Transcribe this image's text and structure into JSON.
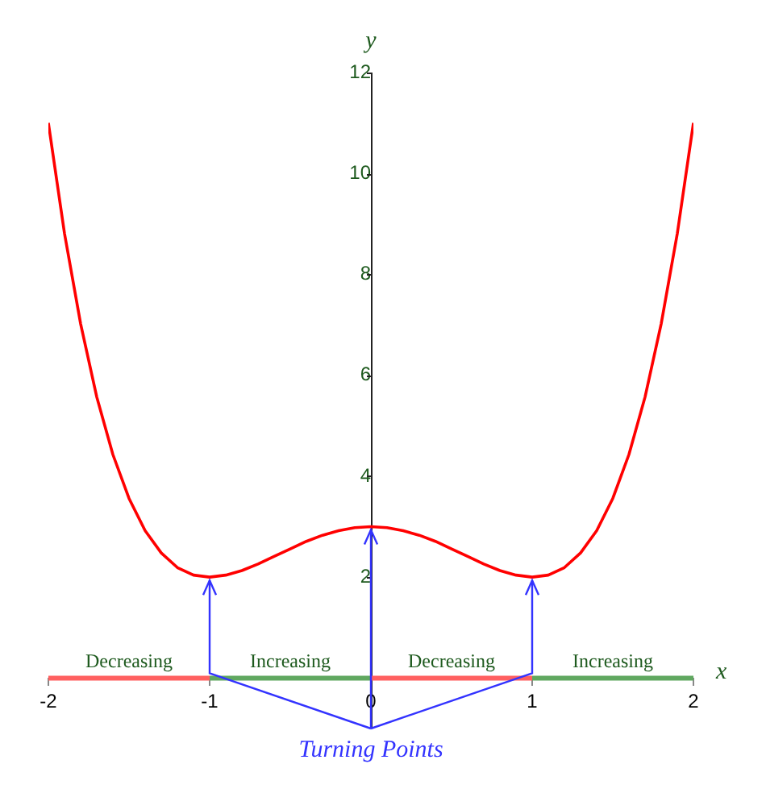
{
  "chart_data": {
    "type": "line",
    "xlabel": "x",
    "ylabel": "y",
    "x": [
      -2,
      -1.9,
      -1.8,
      -1.7,
      -1.6,
      -1.5,
      -1.4,
      -1.3,
      -1.2,
      -1.1,
      -1,
      -0.9,
      -0.8,
      -0.7,
      -0.6,
      -0.5,
      -0.4,
      -0.3,
      -0.2,
      -0.1,
      0,
      0.1,
      0.2,
      0.3,
      0.4,
      0.5,
      0.6,
      0.7,
      0.8,
      0.9,
      1,
      1.1,
      1.2,
      1.3,
      1.4,
      1.5,
      1.6,
      1.7,
      1.8,
      1.9,
      2
    ],
    "series": [
      {
        "color": "#ff0000",
        "values": [
          11,
          8.81,
          7.02,
          5.57,
          4.43,
          3.56,
          2.92,
          2.48,
          2.19,
          2.04,
          2,
          2.04,
          2.13,
          2.26,
          2.41,
          2.56,
          2.71,
          2.83,
          2.92,
          2.98,
          3,
          2.98,
          2.92,
          2.83,
          2.71,
          2.56,
          2.41,
          2.26,
          2.13,
          2.04,
          2,
          2.04,
          2.19,
          2.48,
          2.92,
          3.56,
          4.43,
          5.57,
          7.02,
          8.81,
          11
        ]
      },
      {
        "color": "#ff6060",
        "x": [
          -2,
          -1,
          -0.5,
          0,
          1
        ],
        "values": [
          0,
          0,
          null,
          0,
          0
        ]
      },
      {
        "color": "#60a860",
        "x": [
          -1,
          0,
          0.5,
          1,
          2
        ],
        "values": [
          0,
          0,
          null,
          0,
          0
        ]
      }
    ],
    "xlim": [
      -2,
      2
    ],
    "xticks": [
      -2,
      -1,
      0,
      1,
      2
    ],
    "ylim": [
      -1,
      12
    ],
    "yticks": [
      2,
      4,
      6,
      8,
      10,
      12
    ],
    "annotations": [
      {
        "text": "Decreasing",
        "x": -1.5,
        "y": 0
      },
      {
        "text": "Increasing",
        "x": -0.5,
        "y": 0
      },
      {
        "text": "Decreasing",
        "x": 0.5,
        "y": 0
      },
      {
        "text": "Increasing",
        "x": 1.5,
        "y": 0
      },
      {
        "text": "Turning Points",
        "x": 0,
        "y": 3
      }
    ],
    "grid": false,
    "legend": false,
    "marker": "none",
    "line_style": "solid"
  }
}
